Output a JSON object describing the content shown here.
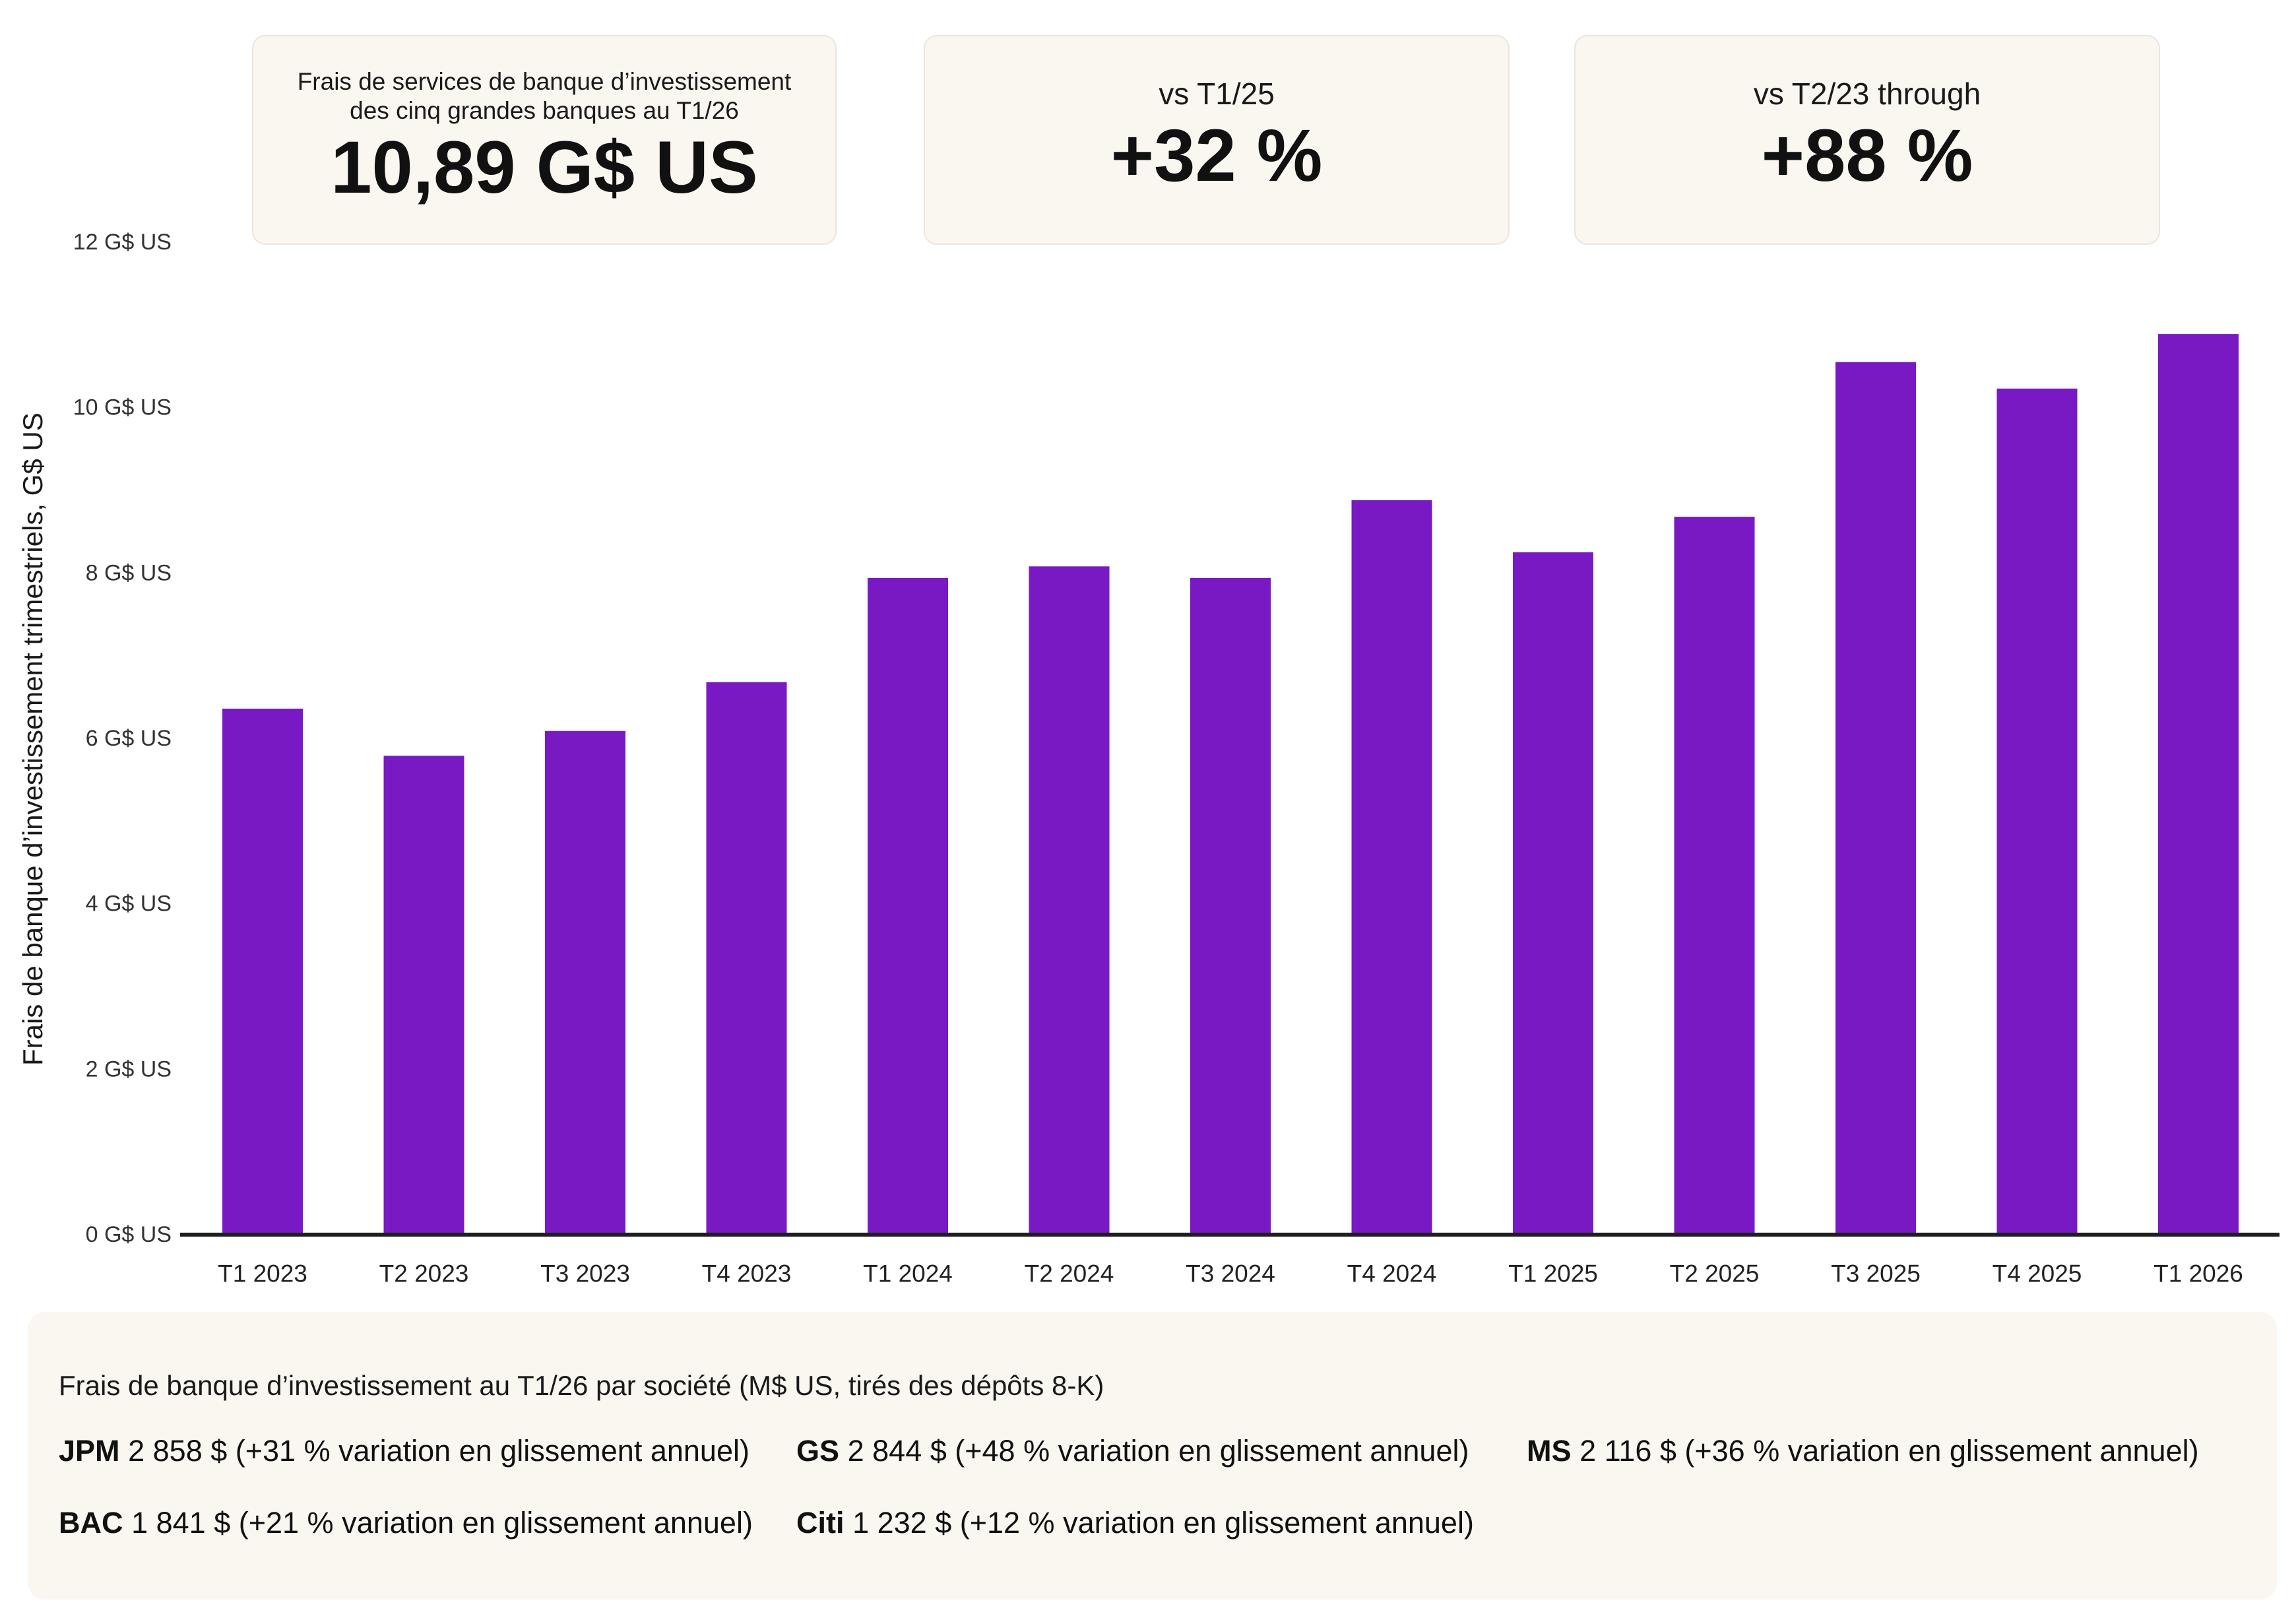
{
  "kpi_total": {
    "label_line1": "Frais de services de banque d’investissement",
    "label_line2": "des cinq grandes banques au T1/26",
    "value": "10,89 G$ US"
  },
  "kpi_vs_t1_25": {
    "label": "vs T1/25",
    "value": "+32 %"
  },
  "kpi_vs_t2_23": {
    "label": "vs T2/23 through",
    "value": "+88 %"
  },
  "chart_data": {
    "type": "bar",
    "title": "",
    "xlabel": "",
    "ylabel": "Frais de banque d’investissement trimestriels, G$ US",
    "categories": [
      "T1 2023",
      "T2 2023",
      "T3 2023",
      "T4 2023",
      "T1 2024",
      "T2 2024",
      "T3 2024",
      "T4 2024",
      "T1 2025",
      "T2 2025",
      "T3 2025",
      "T4 2025",
      "T1 2026"
    ],
    "values": [
      6.36,
      5.79,
      6.09,
      6.68,
      7.94,
      8.08,
      7.94,
      8.88,
      8.25,
      8.68,
      10.55,
      10.23,
      10.89
    ],
    "ylim": [
      0,
      12
    ],
    "y_ticks": [
      0,
      2,
      4,
      6,
      8,
      10,
      12
    ],
    "y_tick_labels": [
      "0 G$ US",
      "2 G$ US",
      "4 G$ US",
      "6 G$ US",
      "8 G$ US",
      "10 G$ US",
      "12 G$ US"
    ],
    "grid": false,
    "legend": "none",
    "bar_color": "#7919c4"
  },
  "breakdown": {
    "title": "Frais de banque d’investissement au T1/26 par société (M$ US, tirés des dépôts 8-K)",
    "items": [
      {
        "ticker": "JPM",
        "detail": "2 858 $ (+31 % variation en glissement annuel)"
      },
      {
        "ticker": "GS",
        "detail": "2 844 $ (+48 % variation en glissement annuel)"
      },
      {
        "ticker": "MS",
        "detail": "2 116 $ (+36 % variation en glissement annuel)"
      },
      {
        "ticker": "BAC",
        "detail": "1 841 $ (+21 % variation en glissement annuel)"
      },
      {
        "ticker": "Citi",
        "detail": "1 232 $ (+12 % variation en glissement annuel)"
      }
    ]
  }
}
